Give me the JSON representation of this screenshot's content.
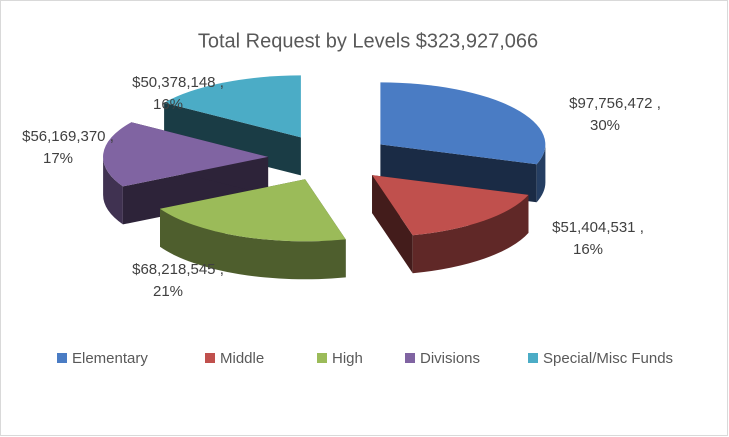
{
  "chart_data": {
    "type": "pie",
    "style": "3d-exploded",
    "title": "Total Request by Levels $323,927,066",
    "categories": [
      "Elementary",
      "Middle",
      "High",
      "Divisions",
      "Special/Misc Funds"
    ],
    "values": [
      97756472,
      51404531,
      68218545,
      56169370,
      50378148
    ],
    "value_labels": [
      [
        "$97,756,472 ,",
        "30%"
      ],
      [
        "$51,404,531 ,",
        "16%"
      ],
      [
        "$68,218,545 ,",
        "21%"
      ],
      [
        "$56,169,370 ,",
        "17%"
      ],
      [
        "$50,378,148 ,",
        "16%"
      ]
    ],
    "colors": [
      "#4a7cc4",
      "#c0504d",
      "#9bbb59",
      "#8064a2",
      "#4bacc6"
    ],
    "legend": "bottom"
  }
}
